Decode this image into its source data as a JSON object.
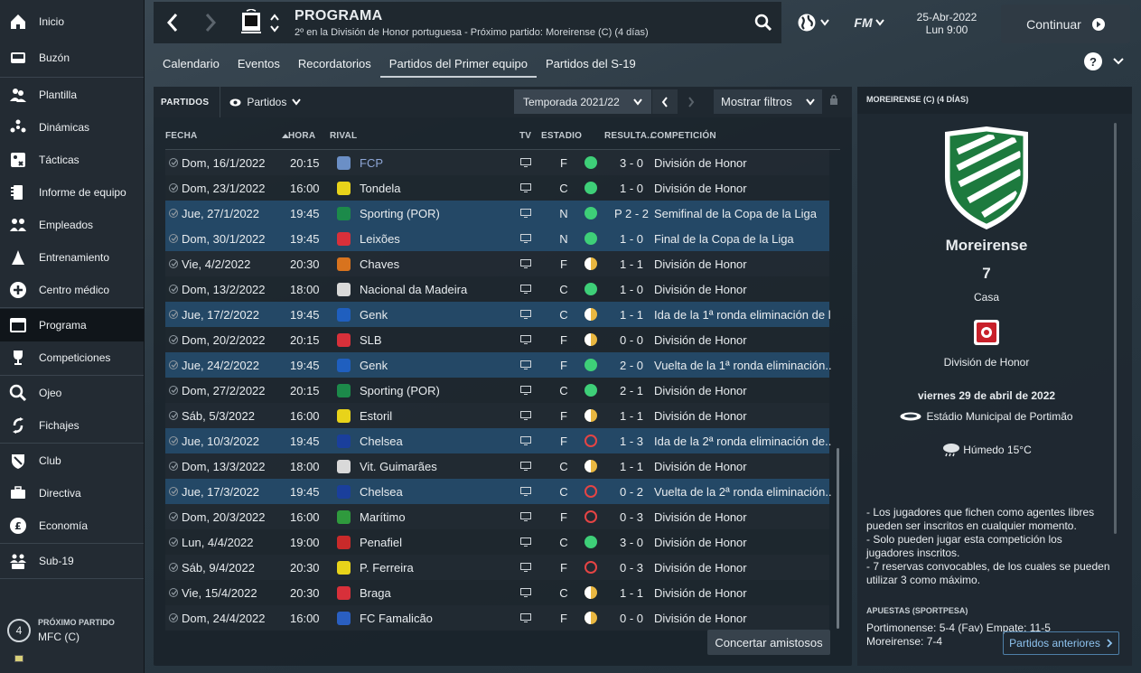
{
  "sidebar": {
    "items": [
      {
        "label": "Inicio",
        "icon": "home-icon"
      },
      {
        "label": "Buzón",
        "icon": "inbox-icon"
      },
      {
        "label": "Plantilla",
        "icon": "squad-icon"
      },
      {
        "label": "Dinámicas",
        "icon": "dynamics-icon"
      },
      {
        "label": "Tácticas",
        "icon": "tactics-icon"
      },
      {
        "label": "Informe de equipo",
        "icon": "team-report-icon"
      },
      {
        "label": "Empleados",
        "icon": "staff-icon"
      },
      {
        "label": "Entrenamiento",
        "icon": "training-icon"
      },
      {
        "label": "Centro médico",
        "icon": "medical-icon"
      },
      {
        "label": "Programa",
        "icon": "schedule-icon",
        "active": true
      },
      {
        "label": "Competiciones",
        "icon": "trophy-icon"
      },
      {
        "label": "Ojeo",
        "icon": "scouting-icon"
      },
      {
        "label": "Fichajes",
        "icon": "transfers-icon"
      },
      {
        "label": "Club",
        "icon": "club-icon"
      },
      {
        "label": "Directiva",
        "icon": "board-icon"
      },
      {
        "label": "Economía",
        "icon": "finance-icon"
      },
      {
        "label": "Sub-19",
        "icon": "u19-icon"
      }
    ],
    "next_match_label": "PRÓXIMO PARTIDO",
    "next_match_team": "MFC (C)",
    "next_match_days": "4"
  },
  "header": {
    "title": "PROGRAMA",
    "subtitle": "2º en la División de Honor portuguesa - Próximo partido: Moreirense (C)  (4 días)",
    "date": "25-Abr-2022",
    "time": "Lun 9:00",
    "continue": "Continuar",
    "fm": "FM"
  },
  "tabs": [
    {
      "label": "Calendario"
    },
    {
      "label": "Eventos"
    },
    {
      "label": "Recordatorios"
    },
    {
      "label": "Partidos del Primer equipo",
      "active": true
    },
    {
      "label": "Partidos del S-19"
    }
  ],
  "panel": {
    "title": "PARTIDOS",
    "view": "Partidos",
    "season": "Temporada 2021/22",
    "filters": "Mostrar filtros",
    "friendly": "Concertar amistosos"
  },
  "columns": {
    "date": "FECHA",
    "time": "HORA",
    "rival": "RIVAL",
    "tv": "TV",
    "venue": "ESTADIO",
    "result": "RESULTA...",
    "comp": "COMPETICIÓN"
  },
  "colors": {
    "win": "#3ecf78",
    "draw": "#e9b740",
    "loss": "#e54444",
    "highlight": "#244866"
  },
  "matches": [
    {
      "date": "Dom, 16/1/2022",
      "time": "20:15",
      "rival": "FCP",
      "venue": "F",
      "res": "W",
      "score": "3 - 0",
      "comp": "División de Honor",
      "hl": false,
      "crest": "#6b8fc6",
      "link": true
    },
    {
      "date": "Dom, 23/1/2022",
      "time": "16:00",
      "rival": "Tondela",
      "venue": "C",
      "res": "W",
      "score": "1 - 0",
      "comp": "División de Honor",
      "hl": false,
      "crest": "#e8d31a"
    },
    {
      "date": "Jue, 27/1/2022",
      "time": "19:45",
      "rival": "Sporting (POR)",
      "venue": "N",
      "res": "W",
      "score": "P 2 - 2",
      "comp": "Semifinal de la Copa de la Liga",
      "hl": true,
      "crest": "#1c8a4a"
    },
    {
      "date": "Dom, 30/1/2022",
      "time": "19:45",
      "rival": "Leixões",
      "venue": "N",
      "res": "W",
      "score": "1 - 0",
      "comp": "Final de la Copa de la Liga",
      "hl": true,
      "crest": "#d8303a"
    },
    {
      "date": "Vie, 4/2/2022",
      "time": "20:30",
      "rival": "Chaves",
      "venue": "F",
      "res": "D",
      "score": "1 - 1",
      "comp": "División de Honor",
      "hl": false,
      "crest": "#d8731e"
    },
    {
      "date": "Dom, 13/2/2022",
      "time": "18:00",
      "rival": "Nacional da Madeira",
      "venue": "C",
      "res": "W",
      "score": "1 - 0",
      "comp": "División de Honor",
      "hl": false,
      "crest": "#d9d9d9"
    },
    {
      "date": "Jue, 17/2/2022",
      "time": "19:45",
      "rival": "Genk",
      "venue": "C",
      "res": "D",
      "score": "1 - 1",
      "comp": "Ida de la 1ª ronda eliminación de l...",
      "hl": true,
      "crest": "#1f5fbf"
    },
    {
      "date": "Dom, 20/2/2022",
      "time": "20:15",
      "rival": "SLB",
      "venue": "F",
      "res": "D",
      "score": "0 - 0",
      "comp": "División de Honor",
      "hl": false,
      "crest": "#d8303a"
    },
    {
      "date": "Jue, 24/2/2022",
      "time": "19:45",
      "rival": "Genk",
      "venue": "F",
      "res": "W",
      "score": "2 - 0",
      "comp": "Vuelta de la 1ª ronda eliminación...",
      "hl": true,
      "crest": "#1f5fbf"
    },
    {
      "date": "Dom, 27/2/2022",
      "time": "20:15",
      "rival": "Sporting (POR)",
      "venue": "C",
      "res": "W",
      "score": "2 - 1",
      "comp": "División de Honor",
      "hl": false,
      "crest": "#1c8a4a"
    },
    {
      "date": "Sáb, 5/3/2022",
      "time": "16:00",
      "rival": "Estoril",
      "venue": "F",
      "res": "D",
      "score": "1 - 1",
      "comp": "División de Honor",
      "hl": false,
      "crest": "#e8d31a"
    },
    {
      "date": "Jue, 10/3/2022",
      "time": "19:45",
      "rival": "Chelsea",
      "venue": "F",
      "res": "L",
      "score": "1 - 3",
      "comp": "Ida de la 2ª ronda eliminación de...",
      "hl": true,
      "crest": "#1a3f9c"
    },
    {
      "date": "Dom, 13/3/2022",
      "time": "18:00",
      "rival": "Vit. Guimarães",
      "venue": "C",
      "res": "D",
      "score": "1 - 1",
      "comp": "División de Honor",
      "hl": false,
      "crest": "#d9d9d9"
    },
    {
      "date": "Jue, 17/3/2022",
      "time": "19:45",
      "rival": "Chelsea",
      "venue": "C",
      "res": "L",
      "score": "0 - 2",
      "comp": "Vuelta de la 2ª ronda eliminación...",
      "hl": true,
      "crest": "#1a3f9c"
    },
    {
      "date": "Dom, 20/3/2022",
      "time": "16:00",
      "rival": "Marítimo",
      "venue": "F",
      "res": "L",
      "score": "0 - 3",
      "comp": "División de Honor",
      "hl": false,
      "crest": "#2f9a3d"
    },
    {
      "date": "Lun, 4/4/2022",
      "time": "19:00",
      "rival": "Penafiel",
      "venue": "C",
      "res": "W",
      "score": "3 - 0",
      "comp": "División de Honor",
      "hl": false,
      "crest": "#c92a2a"
    },
    {
      "date": "Sáb, 9/4/2022",
      "time": "20:30",
      "rival": "P. Ferreira",
      "venue": "F",
      "res": "L",
      "score": "0 - 3",
      "comp": "División de Honor",
      "hl": false,
      "crest": "#e8d31a"
    },
    {
      "date": "Vie, 15/4/2022",
      "time": "20:30",
      "rival": "Braga",
      "venue": "C",
      "res": "D",
      "score": "1 - 1",
      "comp": "División de Honor",
      "hl": false,
      "crest": "#d8303a"
    },
    {
      "date": "Dom, 24/4/2022",
      "time": "16:00",
      "rival": "FC Famalicão",
      "venue": "F",
      "res": "D",
      "score": "0 - 0",
      "comp": "División de Honor",
      "hl": false,
      "crest": "#2a5fc1"
    }
  ],
  "side": {
    "header": "MOREIRENSE (C)  (4 DÍAS)",
    "team": "Moreirense",
    "position": "7",
    "venue": "Casa",
    "competition": "División de Honor",
    "date": "viernes 29 de abril de 2022",
    "stadium": "Estádio Municipal de Portimão",
    "weather": "Húmedo 15°C",
    "notes": [
      "- Los jugadores que fichen como agentes libres pueden ser inscritos en cualquier momento.",
      "- Solo pueden jugar esta competición los jugadores inscritos.",
      "- 7 reservas convocables, de los cuales se pueden utilizar 3 como máximo."
    ],
    "bets_title": "APUESTAS (SPORTPESA)",
    "bets_line1": "Portimonense: 5-4 (Fav) Empate: 11-5",
    "bets_line2": "Moreirense: 7-4",
    "prev_button": "Partidos anteriores"
  }
}
